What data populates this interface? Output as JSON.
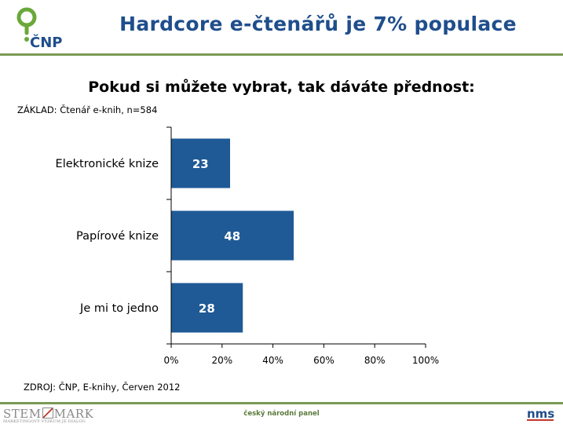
{
  "header": {
    "title": "Hardcore e-čtenářů je 7% populace",
    "logo_text": "ČNP"
  },
  "chart_data": {
    "type": "bar",
    "orientation": "horizontal",
    "title": "Pokud si můžete vybrat, tak dáváte přednost:",
    "categories": [
      "Elektronické knize",
      "Papírové knize",
      "Je mi to jedno"
    ],
    "values": [
      23,
      48,
      28
    ],
    "data_labels": [
      "23",
      "48",
      "28"
    ],
    "xlim": [
      0,
      100
    ],
    "x_ticks": [
      "0%",
      "20%",
      "40%",
      "60%",
      "80%",
      "100%"
    ],
    "grid": false,
    "bar_color": "#1f5a96"
  },
  "notes": {
    "base": "ZÁKLAD: Čtenář e-knih, n=584",
    "source": "ZDROJ: ČNP, E-knihy, Červen 2012"
  },
  "footer": {
    "left_brand": "STEM",
    "left_brand_2": "MARK",
    "left_tagline": "MARKETINGOVÝ VÝZKUM JE DIALOG",
    "center": "český národní panel",
    "right_brand": "nms"
  },
  "colors": {
    "accent_green": "#7a9a55",
    "title_blue": "#1f4e8c",
    "bar_blue": "#1f5a96"
  }
}
